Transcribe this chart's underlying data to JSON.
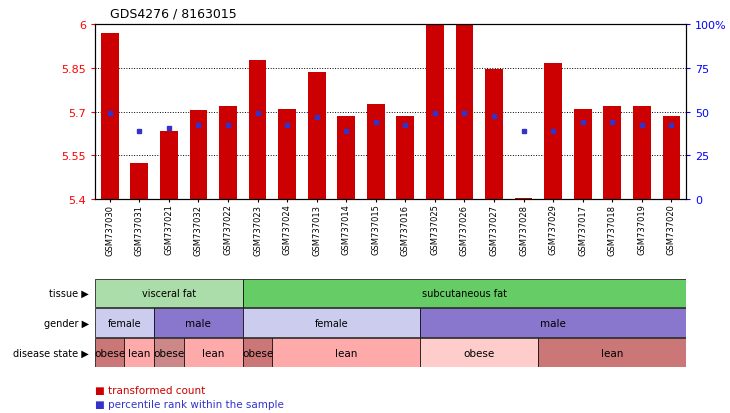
{
  "title": "GDS4276 / 8163015",
  "samples": [
    "GSM737030",
    "GSM737031",
    "GSM737021",
    "GSM737032",
    "GSM737022",
    "GSM737023",
    "GSM737024",
    "GSM737013",
    "GSM737014",
    "GSM737015",
    "GSM737016",
    "GSM737025",
    "GSM737026",
    "GSM737027",
    "GSM737028",
    "GSM737029",
    "GSM737017",
    "GSM737018",
    "GSM737019",
    "GSM737020"
  ],
  "bar_values": [
    5.97,
    5.525,
    5.635,
    5.705,
    5.72,
    5.875,
    5.71,
    5.835,
    5.685,
    5.725,
    5.685,
    6.0,
    5.995,
    5.845,
    5.405,
    5.865,
    5.71,
    5.72,
    5.72,
    5.685
  ],
  "percentile_values": [
    5.695,
    5.635,
    5.645,
    5.655,
    5.655,
    5.695,
    5.655,
    5.68,
    5.635,
    5.665,
    5.655,
    5.695,
    5.695,
    5.685,
    5.635,
    5.635,
    5.665,
    5.665,
    5.655,
    5.655
  ],
  "ymin": 5.4,
  "ymax": 6.0,
  "yticks": [
    5.4,
    5.55,
    5.7,
    5.85,
    6.0
  ],
  "ytick_labels": [
    "5.4",
    "5.55",
    "5.7",
    "5.85",
    "6"
  ],
  "y2ticks": [
    0,
    25,
    50,
    75,
    100
  ],
  "y2tick_labels": [
    "0",
    "25",
    "50",
    "75",
    "100%"
  ],
  "grid_lines": [
    5.55,
    5.7,
    5.85
  ],
  "bar_color": "#cc0000",
  "percentile_color": "#3333cc",
  "bg_color": "#ffffff",
  "tissue_groups": [
    {
      "label": "visceral fat",
      "start": 0,
      "end": 5,
      "color": "#aaddaa"
    },
    {
      "label": "subcutaneous fat",
      "start": 5,
      "end": 20,
      "color": "#66cc66"
    }
  ],
  "gender_groups": [
    {
      "label": "female",
      "start": 0,
      "end": 2,
      "color": "#ccccee"
    },
    {
      "label": "male",
      "start": 2,
      "end": 5,
      "color": "#8877cc"
    },
    {
      "label": "female",
      "start": 5,
      "end": 11,
      "color": "#ccccee"
    },
    {
      "label": "male",
      "start": 11,
      "end": 20,
      "color": "#8877cc"
    }
  ],
  "disease_groups": [
    {
      "label": "obese",
      "start": 0,
      "end": 1,
      "color": "#cc7777"
    },
    {
      "label": "lean",
      "start": 1,
      "end": 2,
      "color": "#ffaaaa"
    },
    {
      "label": "obese",
      "start": 2,
      "end": 3,
      "color": "#cc8888"
    },
    {
      "label": "lean",
      "start": 3,
      "end": 5,
      "color": "#ffaaaa"
    },
    {
      "label": "obese",
      "start": 5,
      "end": 6,
      "color": "#cc7777"
    },
    {
      "label": "lean",
      "start": 6,
      "end": 11,
      "color": "#ffaaaa"
    },
    {
      "label": "obese",
      "start": 11,
      "end": 15,
      "color": "#ffcccc"
    },
    {
      "label": "lean",
      "start": 15,
      "end": 20,
      "color": "#cc7777"
    }
  ],
  "row_labels": [
    "tissue",
    "gender",
    "disease state"
  ],
  "legend_items": [
    {
      "label": "transformed count",
      "color": "#cc0000"
    },
    {
      "label": "percentile rank within the sample",
      "color": "#3333cc"
    }
  ]
}
